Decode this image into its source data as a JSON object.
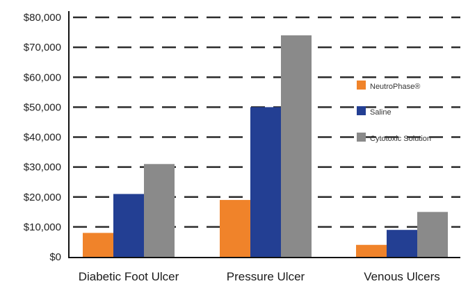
{
  "chart_data": {
    "type": "bar",
    "categories": [
      "Diabetic Foot Ulcer",
      "Pressure Ulcer",
      "Venous Ulcers"
    ],
    "series": [
      {
        "name": "NeutroPhase®",
        "values": [
          8000,
          19000,
          4000
        ],
        "color": "#f0832a"
      },
      {
        "name": "Saline",
        "values": [
          21000,
          50000,
          9000
        ],
        "color": "#233f93"
      },
      {
        "name": "Cytotoxic Solution",
        "values": [
          31000,
          74000,
          15000
        ],
        "color": "#8a8a8a"
      }
    ],
    "yticks": [
      0,
      10000,
      20000,
      30000,
      40000,
      50000,
      60000,
      70000,
      80000
    ],
    "ytick_labels": [
      "$0",
      "$10,000",
      "$20,000",
      "$30,000",
      "$40,000",
      "$50,000",
      "$60,000",
      "$70,000",
      "$80,000"
    ],
    "ylim": [
      0,
      80000
    ],
    "grid": "dashed horizontal",
    "legend_position": "right",
    "title": "",
    "xlabel": "",
    "ylabel": ""
  }
}
